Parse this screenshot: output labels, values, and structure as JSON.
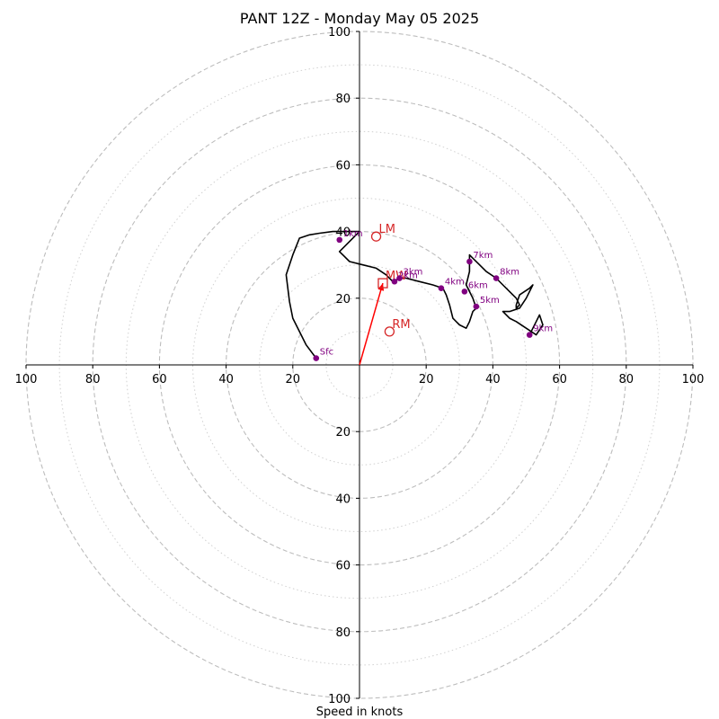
{
  "chart_data": {
    "type": "scatter",
    "title": "PANT 12Z - Monday May 05 2025",
    "xlabel": "Speed in knots",
    "ylabel": "",
    "xlim": [
      -100,
      100
    ],
    "ylim": [
      -100,
      100
    ],
    "range_rings_dashed": [
      20,
      40,
      60,
      80,
      100
    ],
    "range_rings_dotted": [
      10,
      30,
      50,
      70,
      90
    ],
    "x_tick_labels": [
      "100",
      "80",
      "60",
      "40",
      "20",
      "20",
      "40",
      "60",
      "80",
      "100"
    ],
    "x_tick_values": [
      -100,
      -80,
      -60,
      -40,
      -20,
      20,
      40,
      60,
      80,
      100
    ],
    "y_tick_labels": [
      "100",
      "80",
      "60",
      "40",
      "20",
      "20",
      "40",
      "60",
      "80",
      "100"
    ],
    "y_tick_values": [
      100,
      80,
      60,
      40,
      20,
      -20,
      -40,
      -60,
      -80,
      -100
    ],
    "hodograph_trace": {
      "color": "#000000",
      "points": [
        [
          -13,
          2
        ],
        [
          -16,
          6
        ],
        [
          -18,
          10
        ],
        [
          -20,
          14
        ],
        [
          -21,
          19
        ],
        [
          -22,
          27
        ],
        [
          -20,
          33
        ],
        [
          -18,
          38
        ],
        [
          -15,
          39
        ],
        [
          -12,
          39.5
        ],
        [
          -8,
          40
        ],
        [
          -3,
          40
        ],
        [
          0,
          40
        ],
        [
          -4,
          36
        ],
        [
          -6,
          34
        ],
        [
          -3,
          31
        ],
        [
          1,
          30
        ],
        [
          5,
          29
        ],
        [
          8,
          27
        ],
        [
          10,
          25
        ],
        [
          12,
          26
        ],
        [
          14,
          26
        ],
        [
          18,
          25
        ],
        [
          22,
          24
        ],
        [
          25,
          23
        ],
        [
          26,
          21
        ],
        [
          27,
          18
        ],
        [
          28,
          14
        ],
        [
          30,
          12
        ],
        [
          32,
          11
        ],
        [
          33,
          13
        ],
        [
          34,
          16
        ],
        [
          35,
          17
        ],
        [
          34,
          20
        ],
        [
          33,
          22
        ],
        [
          32,
          24
        ],
        [
          33,
          28
        ],
        [
          33,
          31
        ],
        [
          33,
          33
        ],
        [
          34,
          32
        ],
        [
          36,
          30
        ],
        [
          38,
          28
        ],
        [
          41,
          26
        ],
        [
          43,
          24
        ],
        [
          45,
          22
        ],
        [
          47,
          20
        ],
        [
          48,
          18
        ],
        [
          47,
          17
        ],
        [
          47,
          18
        ],
        [
          48,
          21
        ],
        [
          51,
          23
        ],
        [
          52,
          24
        ],
        [
          50,
          20
        ],
        [
          48,
          17
        ],
        [
          45,
          16
        ],
        [
          43,
          16
        ],
        [
          45,
          14
        ],
        [
          47,
          13
        ],
        [
          50,
          11
        ],
        [
          53,
          9
        ],
        [
          55,
          12
        ],
        [
          54,
          15
        ],
        [
          53,
          13
        ],
        [
          52,
          11
        ],
        [
          51,
          9
        ]
      ]
    },
    "height_markers": {
      "color": "#800080",
      "points": [
        {
          "label": "Sfc",
          "x": -13,
          "y": 2
        },
        {
          "label": "1km",
          "x": -6,
          "y": 37.5
        },
        {
          "label": "2km",
          "x": 10.5,
          "y": 25
        },
        {
          "label": "3km",
          "x": 12,
          "y": 26
        },
        {
          "label": "4km",
          "x": 24.5,
          "y": 23
        },
        {
          "label": "5km",
          "x": 35,
          "y": 17.5
        },
        {
          "label": "6km",
          "x": 31.5,
          "y": 22
        },
        {
          "label": "7km",
          "x": 33,
          "y": 31
        },
        {
          "label": "8km",
          "x": 41,
          "y": 26
        },
        {
          "label": "9km",
          "x": 51,
          "y": 9
        }
      ]
    },
    "storm_motion": {
      "color": "#d62728",
      "points": [
        {
          "label": "LM",
          "x": 5,
          "y": 38.5
        },
        {
          "label": "MW",
          "x": 7,
          "y": 24.5
        },
        {
          "label": "RM",
          "x": 9,
          "y": 10
        }
      ],
      "vector": {
        "from": [
          0,
          0
        ],
        "to": [
          7,
          24.5
        ]
      }
    }
  }
}
